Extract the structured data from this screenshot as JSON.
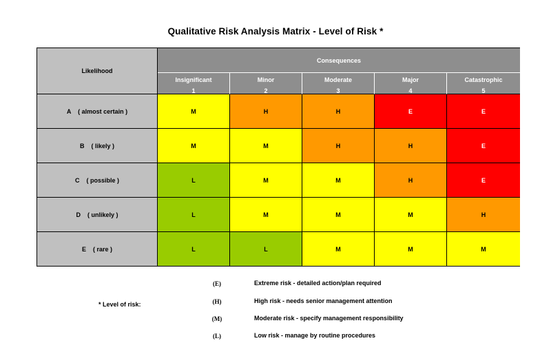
{
  "title": "Qualitative Risk Analysis Matrix - Level of Risk *",
  "matrix": {
    "likelihood_header": "Likelihood",
    "consequences_header": "Consequences",
    "columns": [
      {
        "name": "Insignificant",
        "num": "1"
      },
      {
        "name": "Minor",
        "num": "2"
      },
      {
        "name": "Moderate",
        "num": "3"
      },
      {
        "name": "Major",
        "num": "4"
      },
      {
        "name": "Catastrophic",
        "num": "5"
      }
    ],
    "rows": [
      {
        "label": "A    ( almost certain )",
        "cells": [
          "M",
          "H",
          "H",
          "E",
          "E"
        ]
      },
      {
        "label": "B    ( likely )",
        "cells": [
          "M",
          "M",
          "H",
          "H",
          "E"
        ]
      },
      {
        "label": "C    ( possible )",
        "cells": [
          "L",
          "M",
          "M",
          "H",
          "E"
        ]
      },
      {
        "label": "D    ( unlikely )",
        "cells": [
          "L",
          "M",
          "M",
          "M",
          "H"
        ]
      },
      {
        "label": "E    ( rare )",
        "cells": [
          "L",
          "L",
          "M",
          "M",
          "M"
        ]
      }
    ]
  },
  "colors": {
    "E": "#ff0000",
    "H": "#ff9900",
    "M": "#ffff00",
    "L": "#99cc00",
    "header_gray": "#8e8e8e",
    "label_gray": "#c0c0c0"
  },
  "legend": {
    "label": "* Level of risk:",
    "items": [
      {
        "code": "(E)",
        "desc": "Extreme risk - detailed action/plan required"
      },
      {
        "code": "(H)",
        "desc": "High risk - needs senior management attention"
      },
      {
        "code": "(M)",
        "desc": "Moderate risk - specify management responsibility"
      },
      {
        "code": "(L)",
        "desc": "Low risk - manage by routine procedures"
      }
    ]
  }
}
